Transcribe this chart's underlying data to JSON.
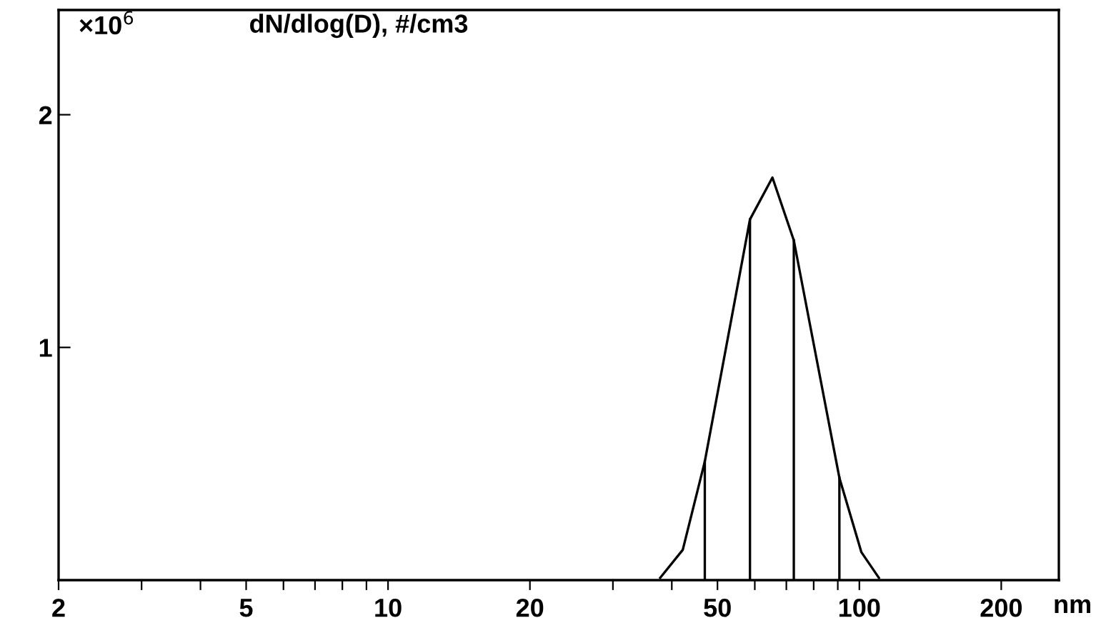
{
  "chart_data": {
    "type": "line",
    "title": "dN/dlog(D), #/cm3",
    "ylabel": "×10$^{6}$",
    "xlabel": "nm",
    "log": "x",
    "series": [
      {
        "color": "#000000",
        "x": [
          37.8,
          42.2,
          47,
          58.6,
          65.4,
          72.6,
          90.7,
          101,
          110
        ],
        "values": [
          0.01,
          0.13,
          0.51,
          1.55,
          1.73,
          1.46,
          0.44,
          0.12,
          0.01
        ]
      },
      {
        "color": "#000000",
        "x": [
          47,
          47
        ],
        "values": [
          0,
          0.51
        ]
      },
      {
        "color": "#000000",
        "x": [
          58.6,
          58.6
        ],
        "values": [
          0,
          1.55
        ]
      },
      {
        "color": "#000000",
        "x": [
          72.6,
          72.6
        ],
        "values": [
          0,
          1.46
        ]
      },
      {
        "color": "#000000",
        "x": [
          90.7,
          90.7
        ],
        "values": [
          0,
          0.44
        ]
      }
    ],
    "marker": "none",
    "xlim": [
      2,
      265
    ],
    "ylim": [
      0,
      2.45
    ],
    "xticks": [
      2,
      {
        "value": 3,
        "label": null
      },
      {
        "value": 4,
        "label": null
      },
      5,
      {
        "value": 6,
        "label": null
      },
      {
        "value": 7,
        "label": null
      },
      {
        "value": 8,
        "label": null
      },
      {
        "value": 9,
        "label": null
      },
      10,
      20,
      {
        "value": 30,
        "label": null
      },
      {
        "value": 40,
        "label": null
      },
      50,
      {
        "value": 60,
        "label": null
      },
      {
        "value": 70,
        "label": null
      },
      {
        "value": 80,
        "label": null
      },
      {
        "value": 90,
        "label": null
      },
      100,
      200
    ],
    "yticks": [
      1,
      2
    ],
    "grid": false,
    "legend": false
  }
}
